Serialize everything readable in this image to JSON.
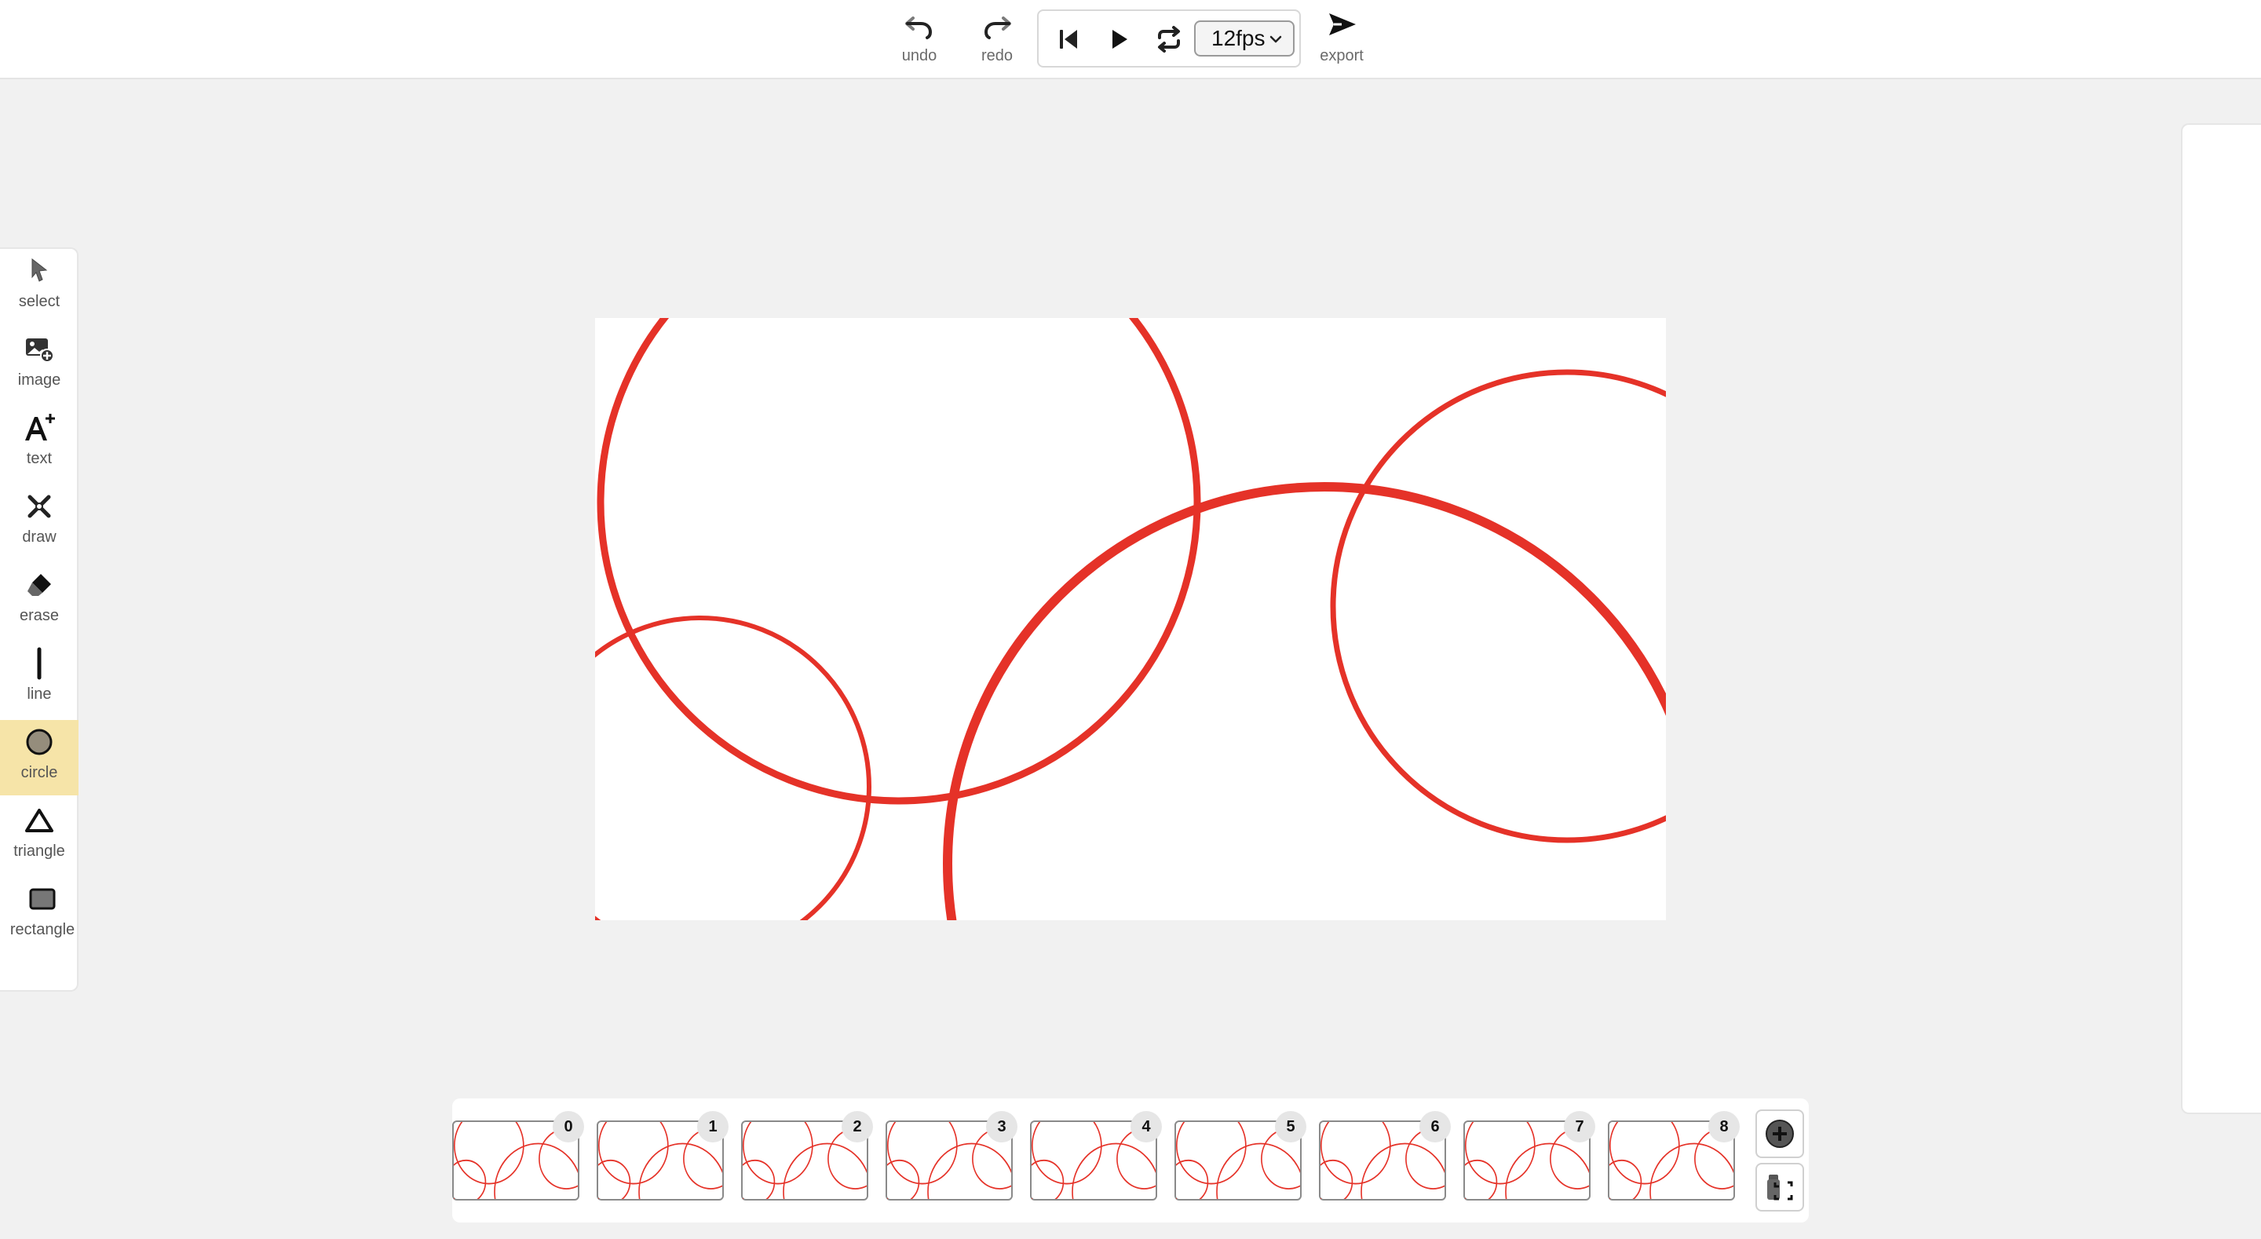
{
  "toolbar_top": {
    "undo_label": "undo",
    "redo_label": "redo",
    "export_label": "export",
    "fps_value": "12fps",
    "icons": [
      "undo-icon",
      "redo-icon",
      "skip-to-start-icon",
      "play-icon",
      "loop-icon",
      "chevron-down-icon",
      "send-icon"
    ]
  },
  "tools": [
    {
      "label": "select",
      "icon": "cursor-icon"
    },
    {
      "label": "image",
      "icon": "image-add-icon"
    },
    {
      "label": "text",
      "icon": "text-add-icon"
    },
    {
      "label": "draw",
      "icon": "draw-icon"
    },
    {
      "label": "erase",
      "icon": "eraser-icon"
    },
    {
      "label": "line",
      "icon": "line-icon"
    },
    {
      "label": "circle",
      "icon": "circle-icon",
      "active": true
    },
    {
      "label": "triangle",
      "icon": "triangle-icon"
    },
    {
      "label": "rectangle",
      "icon": "rectangle-icon"
    }
  ],
  "colors": {
    "stroke": "#e53228",
    "active_tool_bg": "#f6e4a8"
  },
  "timeline": {
    "frames": [
      "0",
      "1",
      "2",
      "3",
      "4",
      "5",
      "6",
      "7",
      "8"
    ],
    "add_button_icon": "plus-circle-icon",
    "duplicate_button_icon": "duplicate-frame-icon"
  }
}
